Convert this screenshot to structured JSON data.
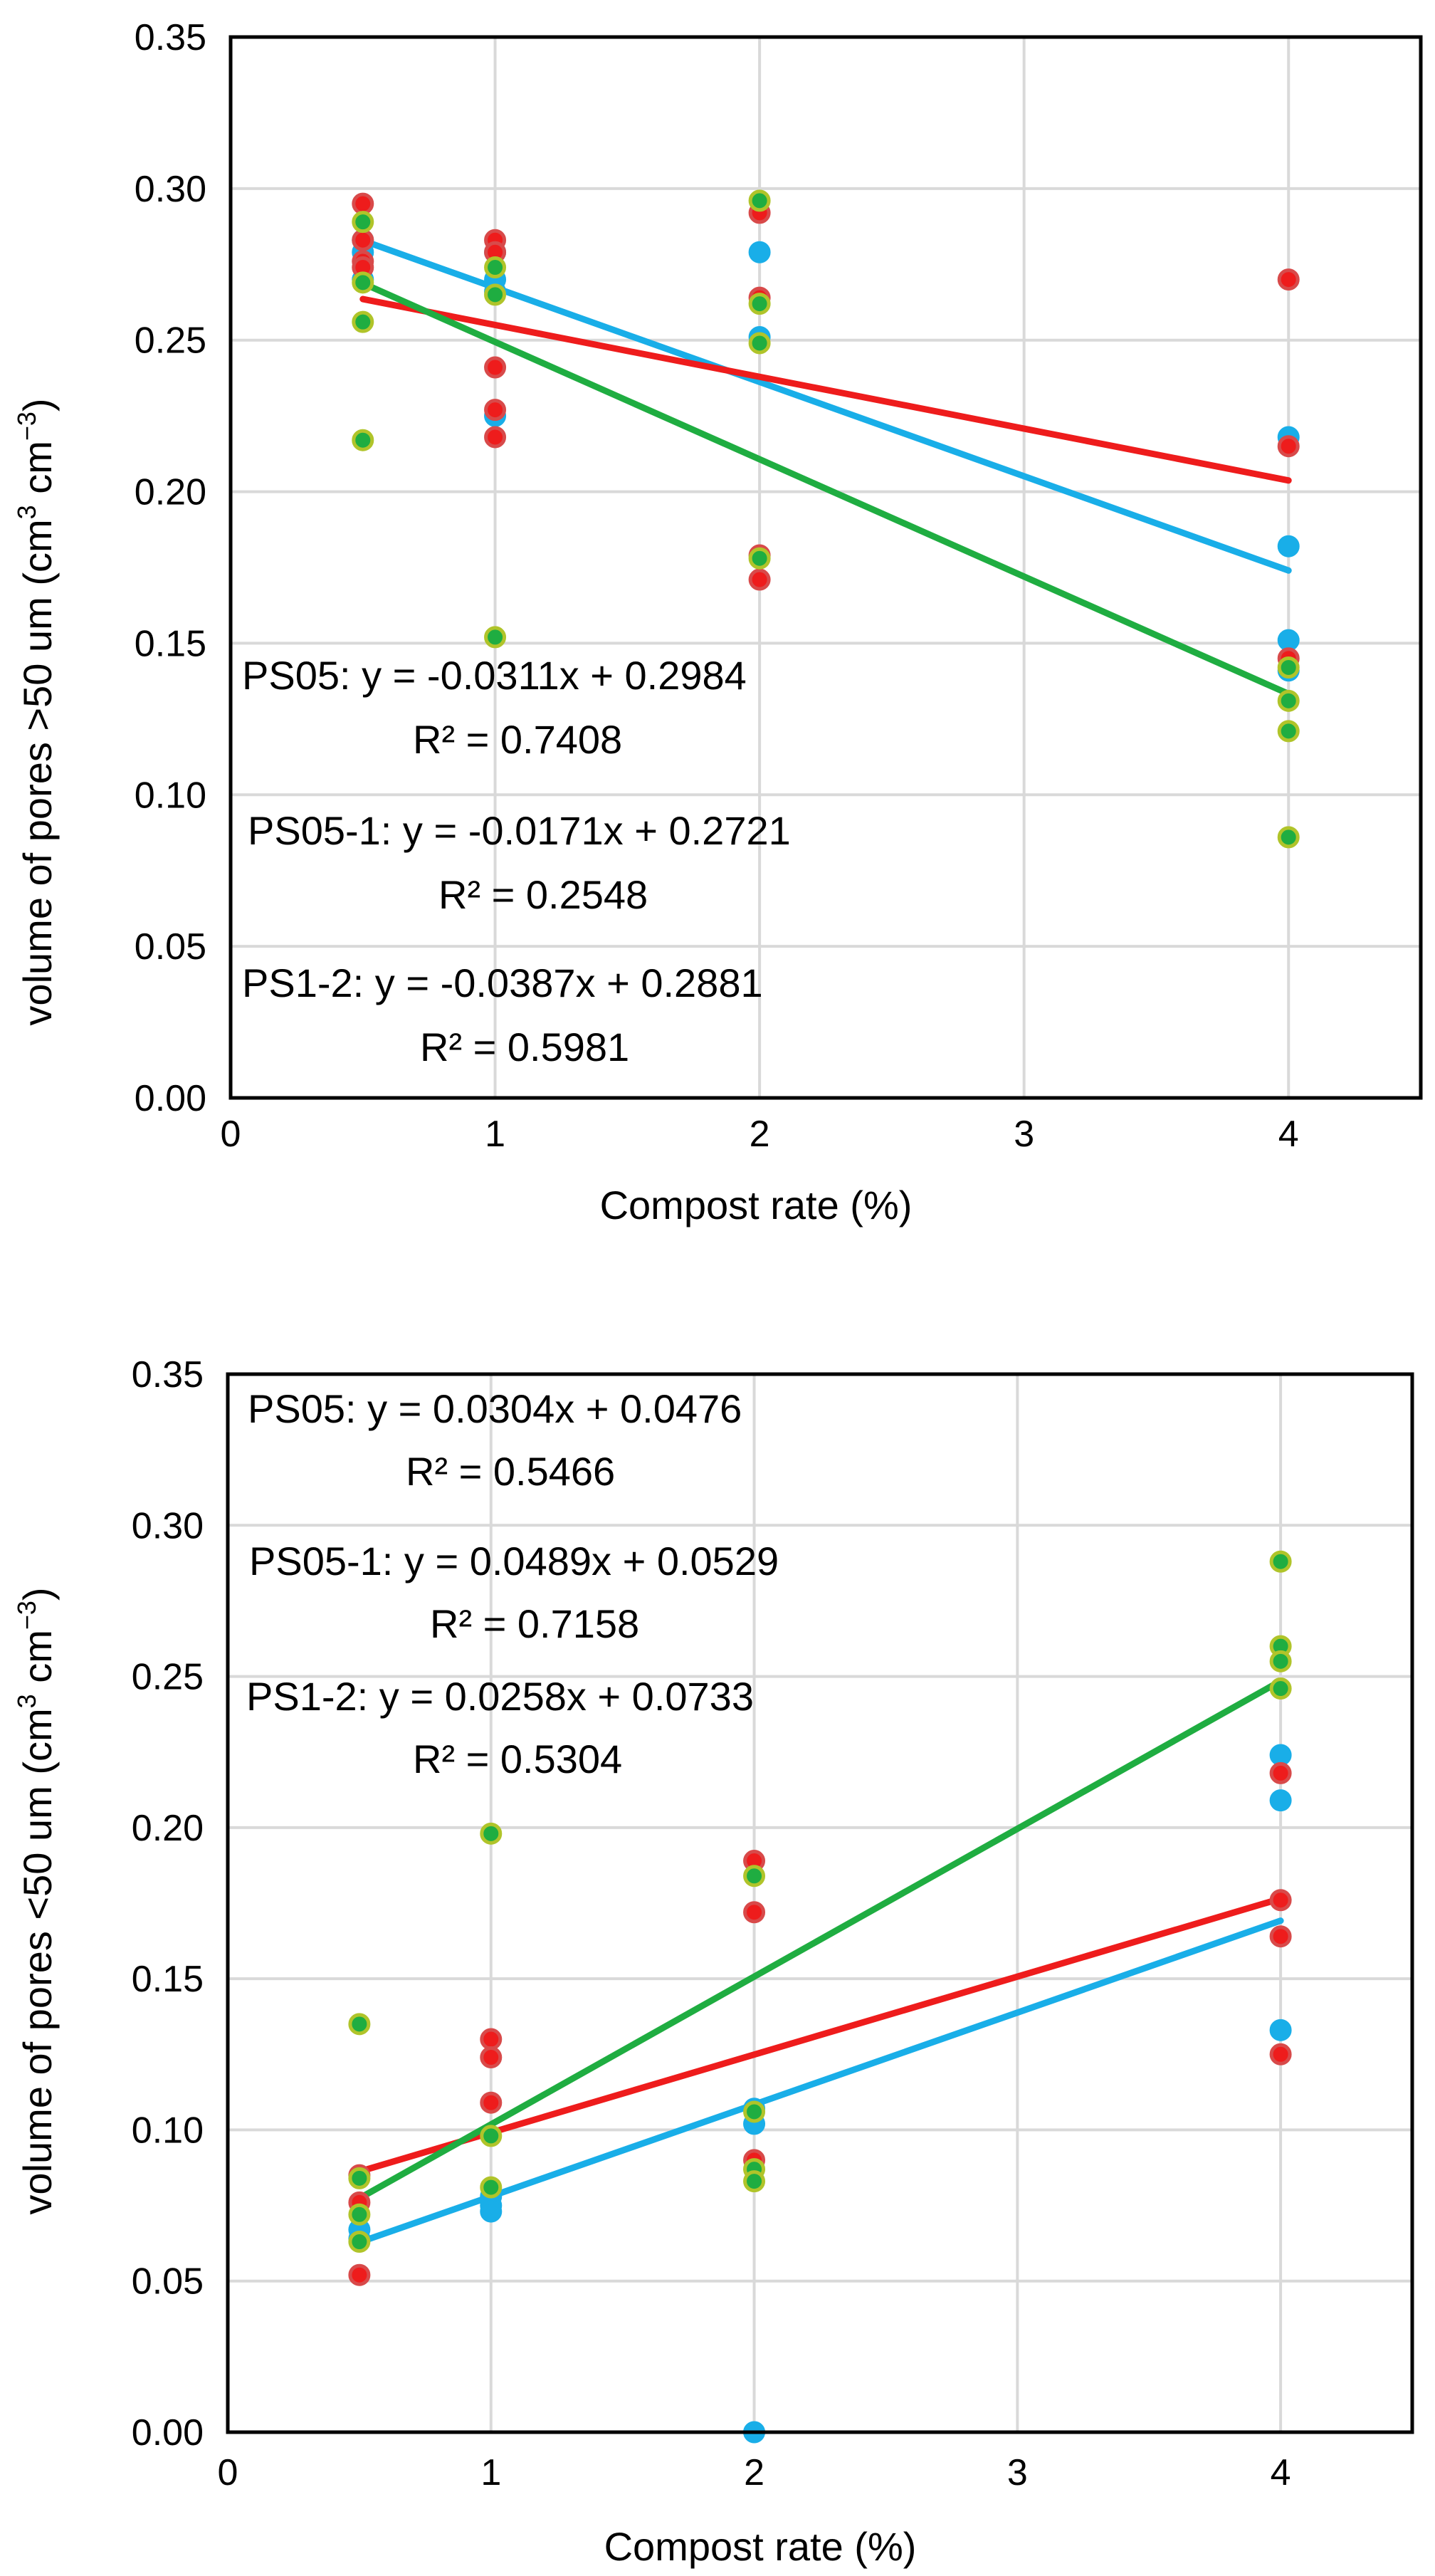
{
  "colors": {
    "PS05": "#19aee8",
    "PS05-1": "#ee1c1c",
    "PS1-2": "#1fad41",
    "marker_edge": "#b0c42a",
    "grid": "#d9d9d9",
    "frame": "#000000"
  },
  "chart_data": [
    {
      "type": "scatter",
      "xlabel": "Compost rate (%)",
      "ylabel": "volume of pores >50 um (cm",
      "ylabel_unit_mid": " cm",
      "ylabel_sup": "3",
      "ylabel_sup2": "−3",
      "ylabel_close": ")",
      "xlim": [
        0,
        4.5
      ],
      "ylim": [
        0,
        0.35
      ],
      "xticks": [
        "0",
        "1",
        "2",
        "3",
        "4"
      ],
      "yticks": [
        "0.00",
        "0.05",
        "0.10",
        "0.15",
        "0.20",
        "0.25",
        "0.30",
        "0.35"
      ],
      "series": [
        {
          "name": "PS05",
          "color_key": "PS05",
          "points": [
            [
              0.5,
              0.283
            ],
            [
              0.5,
              0.279
            ],
            [
              0.5,
              0.27
            ],
            [
              1,
              0.279
            ],
            [
              1,
              0.27
            ],
            [
              1,
              0.266
            ],
            [
              1,
              0.225
            ],
            [
              2,
              0.279
            ],
            [
              2,
              0.251
            ],
            [
              4,
              0.218
            ],
            [
              4,
              0.182
            ],
            [
              4,
              0.151
            ],
            [
              4,
              0.141
            ]
          ],
          "fit": {
            "x1": 0.5,
            "x2": 4,
            "slope": -0.0311,
            "intercept": 0.2984
          },
          "equation": "PS05: y = -0.0311x + 0.2984",
          "r2": "R² = 0.7408"
        },
        {
          "name": "PS05-1",
          "color_key": "PS05-1",
          "points": [
            [
              0.5,
              0.295
            ],
            [
              0.5,
              0.283
            ],
            [
              0.5,
              0.276
            ],
            [
              0.5,
              0.274
            ],
            [
              1,
              0.283
            ],
            [
              1,
              0.279
            ],
            [
              1,
              0.241
            ],
            [
              1,
              0.227
            ],
            [
              1,
              0.218
            ],
            [
              2,
              0.292
            ],
            [
              2,
              0.264
            ],
            [
              2,
              0.179
            ],
            [
              2,
              0.171
            ],
            [
              4,
              0.27
            ],
            [
              4,
              0.215
            ],
            [
              4,
              0.145
            ]
          ],
          "fit": {
            "x1": 0.5,
            "x2": 4,
            "slope": -0.0171,
            "intercept": 0.2721
          },
          "equation": "PS05-1: y = -0.0171x + 0.2721",
          "r2": "R² = 0.2548"
        },
        {
          "name": "PS1-2",
          "color_key": "PS1-2",
          "points": [
            [
              0.5,
              0.289
            ],
            [
              0.5,
              0.269
            ],
            [
              0.5,
              0.256
            ],
            [
              0.5,
              0.217
            ],
            [
              1,
              0.274
            ],
            [
              1,
              0.265
            ],
            [
              1,
              0.152
            ],
            [
              2,
              0.296
            ],
            [
              2,
              0.262
            ],
            [
              2,
              0.249
            ],
            [
              2,
              0.178
            ],
            [
              4,
              0.142
            ],
            [
              4,
              0.131
            ],
            [
              4,
              0.121
            ],
            [
              4,
              0.086
            ]
          ],
          "fit": {
            "x1": 0.5,
            "x2": 4,
            "slope": -0.0387,
            "intercept": 0.2881
          },
          "equation": "PS1-2: y = -0.0387x + 0.2881",
          "r2": "R² = 0.5981"
        }
      ]
    },
    {
      "type": "scatter",
      "xlabel": "Compost rate (%)",
      "ylabel": "volume of pores <50 um (cm",
      "ylabel_unit_mid": " cm",
      "ylabel_sup": "3",
      "ylabel_sup2": "−3",
      "ylabel_close": ")",
      "xlim": [
        0,
        4.5
      ],
      "ylim": [
        0,
        0.35
      ],
      "xticks": [
        "0",
        "1",
        "2",
        "3",
        "4"
      ],
      "yticks": [
        "0.00",
        "0.05",
        "0.10",
        "0.15",
        "0.20",
        "0.25",
        "0.30",
        "0.35"
      ],
      "series": [
        {
          "name": "PS05",
          "color_key": "PS05",
          "points": [
            [
              0.5,
              0.067
            ],
            [
              0.5,
              0.064
            ],
            [
              1,
              0.078
            ],
            [
              1,
              0.075
            ],
            [
              1,
              0.073
            ],
            [
              2,
              0.107
            ],
            [
              2,
              0.102
            ],
            [
              2,
              0.0
            ],
            [
              4,
              0.224
            ],
            [
              4,
              0.209
            ],
            [
              4,
              0.133
            ]
          ],
          "fit": {
            "x1": 0.5,
            "x2": 4,
            "slope": 0.0304,
            "intercept": 0.0476
          },
          "equation": "PS05: y = 0.0304x + 0.0476",
          "r2": "R² = 0.5466"
        },
        {
          "name": "PS1-2",
          "color_key": "PS05-1",
          "points": [
            [
              0.5,
              0.085
            ],
            [
              0.5,
              0.076
            ],
            [
              0.5,
              0.052
            ],
            [
              1,
              0.13
            ],
            [
              1,
              0.124
            ],
            [
              1,
              0.109
            ],
            [
              2,
              0.189
            ],
            [
              2,
              0.172
            ],
            [
              2,
              0.09
            ],
            [
              4,
              0.218
            ],
            [
              4,
              0.176
            ],
            [
              4,
              0.164
            ],
            [
              4,
              0.125
            ]
          ],
          "fit": {
            "x1": 0.5,
            "x2": 4,
            "slope": 0.0258,
            "intercept": 0.0733
          },
          "equation": "PS1-2: y = 0.0258x + 0.0733",
          "r2": "R² = 0.5304"
        },
        {
          "name": "PS05-1",
          "color_key": "PS1-2",
          "points": [
            [
              0.5,
              0.135
            ],
            [
              0.5,
              0.084
            ],
            [
              0.5,
              0.072
            ],
            [
              0.5,
              0.063
            ],
            [
              1,
              0.198
            ],
            [
              1,
              0.098
            ],
            [
              1,
              0.081
            ],
            [
              2,
              0.184
            ],
            [
              2,
              0.106
            ],
            [
              2,
              0.087
            ],
            [
              2,
              0.083
            ],
            [
              4,
              0.288
            ],
            [
              4,
              0.26
            ],
            [
              4,
              0.255
            ],
            [
              4,
              0.246
            ]
          ],
          "fit": {
            "x1": 0.5,
            "x2": 4,
            "slope": 0.0489,
            "intercept": 0.0529
          },
          "equation": "PS05-1: y = 0.0489x + 0.0529",
          "r2": "R² = 0.7158"
        }
      ]
    }
  ]
}
